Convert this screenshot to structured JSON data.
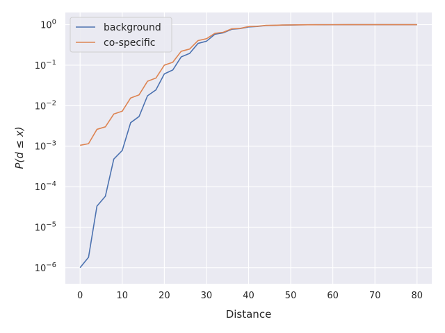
{
  "chart_data": {
    "type": "line",
    "xlabel": "Distance",
    "ylabel": "P(d ≤ x)",
    "xlim": [
      -3.5,
      83.5
    ],
    "ylim": [
      4e-07,
      2
    ],
    "yscale": "log",
    "grid": true,
    "legend_position": "top-left",
    "x_ticks": [
      0,
      10,
      20,
      30,
      40,
      50,
      60,
      70,
      80
    ],
    "x_tick_labels": [
      "0",
      "10",
      "20",
      "30",
      "40",
      "50",
      "60",
      "70",
      "80"
    ],
    "y_ticks": [
      1e-06,
      1e-05,
      0.0001,
      0.001,
      0.01,
      0.1,
      1
    ],
    "y_tick_labels": [
      {
        "base": "10",
        "exp": "−6"
      },
      {
        "base": "10",
        "exp": "−5"
      },
      {
        "base": "10",
        "exp": "−4"
      },
      {
        "base": "10",
        "exp": "−3"
      },
      {
        "base": "10",
        "exp": "−2"
      },
      {
        "base": "10",
        "exp": "−1"
      },
      {
        "base": "10",
        "exp": "0"
      }
    ],
    "x": [
      0,
      2,
      4,
      6,
      8,
      10,
      12,
      14,
      16,
      18,
      20,
      22,
      24,
      26,
      28,
      30,
      32,
      34,
      36,
      38,
      40,
      42,
      44,
      46,
      48,
      50,
      52,
      54,
      56,
      58,
      60,
      62,
      64,
      66,
      68,
      70,
      72,
      74,
      76,
      78,
      80
    ],
    "series": [
      {
        "name": "background",
        "color": "#4c72b0",
        "values": [
          1e-06,
          1.8e-06,
          3.3e-05,
          5.8e-05,
          0.00048,
          0.00078,
          0.0038,
          0.0054,
          0.0175,
          0.0245,
          0.061,
          0.076,
          0.16,
          0.195,
          0.345,
          0.39,
          0.58,
          0.63,
          0.77,
          0.8,
          0.88,
          0.9,
          0.95,
          0.96,
          0.975,
          0.982,
          0.99,
          0.993,
          0.996,
          0.997,
          0.998,
          0.998,
          0.999,
          0.999,
          0.999,
          0.999,
          0.999,
          1.0,
          1.0,
          1.0,
          1.0
        ]
      },
      {
        "name": "co-specific",
        "color": "#dd8452",
        "values": [
          0.00105,
          0.00115,
          0.0026,
          0.003,
          0.0062,
          0.0073,
          0.0155,
          0.0185,
          0.04,
          0.048,
          0.1,
          0.118,
          0.22,
          0.25,
          0.405,
          0.45,
          0.61,
          0.65,
          0.79,
          0.81,
          0.9,
          0.91,
          0.96,
          0.965,
          0.98,
          0.985,
          0.992,
          0.994,
          0.997,
          0.998,
          0.998,
          0.999,
          0.999,
          0.999,
          0.999,
          1.0,
          1.0,
          1.0,
          1.0,
          1.0,
          1.0
        ]
      }
    ]
  }
}
